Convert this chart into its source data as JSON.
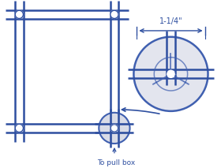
{
  "bg_color": "#ffffff",
  "blue_dark": "#2e4fa0",
  "blue_mid": "#4060b0",
  "blue_light": "#7090cc",
  "gray_fill": "#ccd0e0",
  "white_fill": "#ffffff",
  "dim_label": "1-1/4\"",
  "label_pullbox": "To pull box"
}
